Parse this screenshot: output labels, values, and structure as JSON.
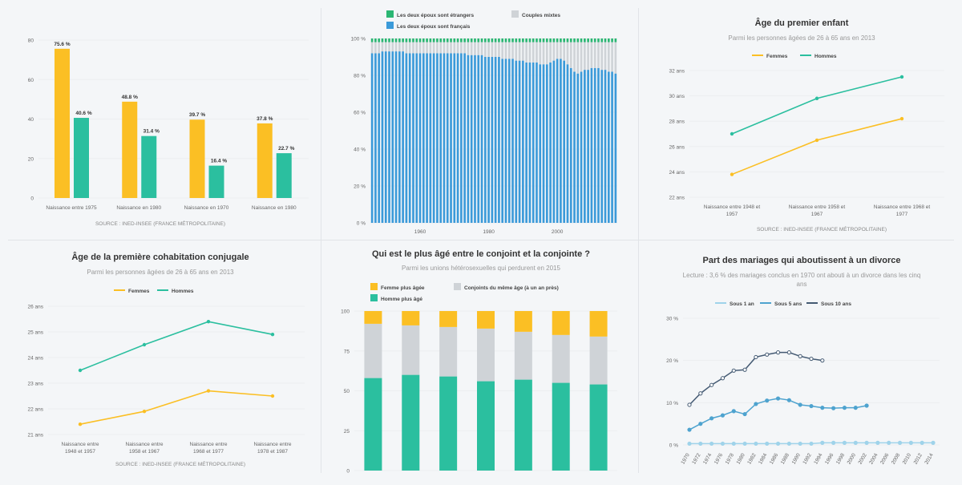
{
  "colors": {
    "yellow": "#fbbf24",
    "teal": "#2bbf9f",
    "blue": "#3b9ad9",
    "green": "#2bb673",
    "gray": "#cfd3d7",
    "linegray": "#eceef0",
    "divLightBlue": "#9fd3ea",
    "divMidBlue": "#4ea3cf",
    "divDarkBlue": "#445a73"
  },
  "chart_data": [
    {
      "type": "bar",
      "categories": [
        "Naissance entre 1975",
        "Naissance en 1980",
        "Naissance en 1970",
        "Naissance en 1980"
      ],
      "series": [
        {
          "values": [
            75.6,
            48.8,
            39.7,
            37.8
          ],
          "labels": [
            "75.6 %",
            "48.8 %",
            "39.7 %",
            "37.8 %"
          ]
        },
        {
          "values": [
            40.6,
            31.4,
            16.4,
            22.7
          ],
          "labels": [
            "40.6 %",
            "31.4 %",
            "16.4 %",
            "22.7 %"
          ]
        }
      ],
      "ylim": [
        0,
        80
      ],
      "yticks": [
        "0",
        "20",
        "40",
        "60",
        "80"
      ],
      "source": "SOURCE : INED-INSEE (FRANCE MÉTROPOLITAINE)"
    },
    {
      "type": "bar",
      "stacked": true,
      "legend": [
        "Les deux époux sont étrangers",
        "Couples mixtes",
        "Les deux époux sont français"
      ],
      "x_start": 1946,
      "x_end": 2017,
      "xticks": [
        "1960",
        "1980",
        "2000"
      ],
      "francais": [
        92,
        92,
        92,
        93,
        93,
        93,
        93,
        93,
        93,
        93,
        92,
        92,
        92,
        92,
        92,
        92,
        92,
        92,
        92,
        92,
        92,
        92,
        92,
        92,
        92,
        92,
        92,
        92,
        91,
        91,
        91,
        91,
        91,
        90,
        90,
        90,
        90,
        90,
        89,
        89,
        89,
        89,
        88,
        88,
        88,
        87,
        87,
        87,
        87,
        86,
        86,
        86,
        87,
        88,
        89,
        89,
        88,
        86,
        84,
        82,
        81,
        82,
        83,
        83,
        84,
        84,
        84,
        83,
        83,
        82,
        82,
        81
      ],
      "etrangers": 2,
      "ylim": [
        0,
        100
      ],
      "yticks": [
        "0 %",
        "20 %",
        "40 %",
        "60 %",
        "80 %",
        "100 %"
      ]
    },
    {
      "type": "line",
      "title": "Âge du premier enfant",
      "subtitle": "Parmi les personnes âgées de 26 à 65 ans en 2013",
      "legend": [
        "Femmes",
        "Hommes"
      ],
      "categories": [
        "Naissance entre 1948 et 1957",
        "Naissance entre 1958 et 1967",
        "Naissance entre 1968 et 1977"
      ],
      "cat_lines": [
        [
          "Naissance entre 1948 et",
          "1957"
        ],
        [
          "Naissance entre 1958 et",
          "1967"
        ],
        [
          "Naissance entre 1968 et",
          "1977"
        ]
      ],
      "series": [
        {
          "name": "Femmes",
          "values": [
            23.8,
            26.5,
            28.2
          ]
        },
        {
          "name": "Hommes",
          "values": [
            27.0,
            29.8,
            31.5
          ]
        }
      ],
      "ylim": [
        22,
        32
      ],
      "yticks": [
        "22 ans",
        "24 ans",
        "26 ans",
        "28 ans",
        "30 ans",
        "32 ans"
      ],
      "source": "SOURCE : INED-INSEE (FRANCE MÉTROPOLITAINE)"
    },
    {
      "type": "line",
      "title": "Âge de la première cohabitation conjugale",
      "subtitle": "Parmi les personnes âgées de 26 à 65 ans en 2013",
      "legend": [
        "Femmes",
        "Hommes"
      ],
      "categories": [
        "Naissance entre 1948 et 1957",
        "Naissance entre 1958 et 1967",
        "Naissance entre 1968 et 1977",
        "Naissance entre 1978 et 1987"
      ],
      "cat_lines": [
        [
          "Naissance entre",
          "1948 et 1957"
        ],
        [
          "Naissance entre",
          "1958 et 1967"
        ],
        [
          "Naissance entre",
          "1968 et 1977"
        ],
        [
          "Naissance entre",
          "1978 et 1987"
        ]
      ],
      "series": [
        {
          "name": "Femmes",
          "values": [
            21.4,
            21.9,
            22.7,
            22.5
          ]
        },
        {
          "name": "Hommes",
          "values": [
            23.5,
            24.5,
            25.4,
            24.9
          ]
        }
      ],
      "ylim": [
        21,
        26
      ],
      "yticks": [
        "21 ans",
        "22 ans",
        "23 ans",
        "24 ans",
        "25 ans",
        "26 ans"
      ],
      "source": "SOURCE : INED-INSEE (FRANCE MÉTROPOLITAINE)"
    },
    {
      "type": "bar",
      "stacked": true,
      "title": "Qui est le plus âgé entre le conjoint et la conjointe ?",
      "subtitle": "Parmi les unions hétérosexuelles qui perdurent en 2015",
      "legend": [
        "Femme plus âgée",
        "Conjoints du même âge (à un an près)",
        "Homme plus âgé"
      ],
      "categories": [
        "",
        "",
        "",
        "",
        "",
        "",
        ""
      ],
      "series": [
        {
          "name": "Homme plus âgé",
          "values": [
            58,
            60,
            59,
            56,
            57,
            55,
            54
          ]
        },
        {
          "name": "Conjoints du même âge (à un an près)",
          "values": [
            34,
            31,
            31,
            33,
            30,
            30,
            30
          ]
        },
        {
          "name": "Femme plus âgée",
          "values": [
            8,
            9,
            10,
            11,
            13,
            15,
            16
          ]
        }
      ],
      "ylim": [
        0,
        100
      ],
      "yticks": [
        "0",
        "25",
        "50",
        "75",
        "100"
      ]
    },
    {
      "type": "line",
      "title": "Part des mariages qui aboutissent à un divorce",
      "subtitle": [
        "Lecture : 3,6 % des mariages conclus en 1970 ont abouti à un divorce dans les cinq",
        "ans"
      ],
      "legend": [
        "Sous 1 an",
        "Sous 5 ans",
        "Sous 10 ans"
      ],
      "x_start": 1970,
      "x_end": 2014,
      "x_step": 2,
      "xticks": [
        "1970",
        "1972",
        "1974",
        "1976",
        "1978",
        "1980",
        "1982",
        "1984",
        "1986",
        "1988",
        "1990",
        "1992",
        "1994",
        "1996",
        "1998",
        "2000",
        "2002",
        "2004",
        "2006",
        "2008",
        "2010",
        "2012",
        "2014"
      ],
      "series": [
        {
          "name": "Sous 1 an",
          "values": [
            0.3,
            0.3,
            0.3,
            0.3,
            0.3,
            0.3,
            0.3,
            0.3,
            0.3,
            0.3,
            0.3,
            0.3,
            0.5,
            0.5,
            0.5,
            0.5,
            0.5,
            0.5,
            0.5,
            0.5,
            0.5,
            0.5,
            0.5
          ]
        },
        {
          "name": "Sous 5 ans",
          "values": [
            3.6,
            5.0,
            6.3,
            7.0,
            8.0,
            7.3,
            9.7,
            10.5,
            11.0,
            10.6,
            9.5,
            9.2,
            8.8,
            8.7,
            8.8,
            8.8,
            9.3
          ]
        },
        {
          "name": "Sous 10 ans",
          "values": [
            9.5,
            12.2,
            14.2,
            15.8,
            17.6,
            17.8,
            20.8,
            21.4,
            21.9,
            21.9,
            21.0,
            20.4,
            20.0
          ]
        }
      ],
      "ylim": [
        0,
        30
      ],
      "yticks": [
        "0 %",
        "10 %",
        "20 %",
        "30 %"
      ]
    }
  ]
}
